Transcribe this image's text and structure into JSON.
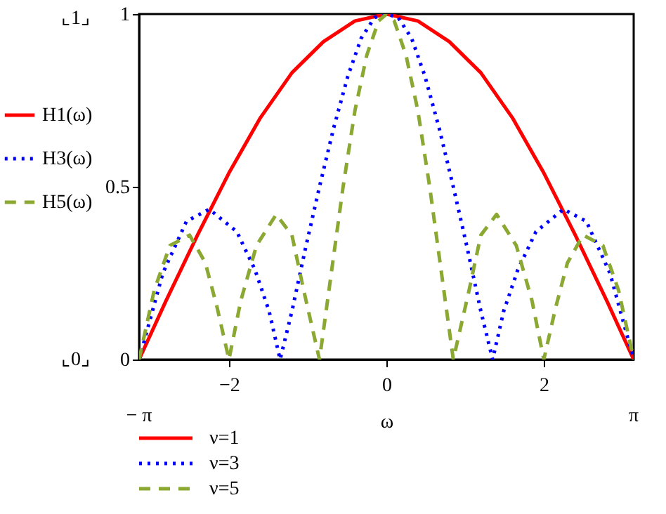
{
  "chart_data": {
    "type": "line",
    "xlabel": "ω",
    "xlim": [
      -3.1416,
      3.1416
    ],
    "xticks": [
      -2,
      0,
      2
    ],
    "ylim": [
      0,
      1
    ],
    "yticks": [
      {
        "value": 0,
        "label": "0"
      },
      0.5,
      {
        "value": 1,
        "label": "1"
      }
    ],
    "grid": false,
    "legend": "left",
    "series": [
      {
        "name": "H1(ω)",
        "color": "#ff0000",
        "line_style": "solid",
        "x": [
          -3.1416,
          -2.8,
          -2.4,
          -2.0,
          -1.6,
          -1.2,
          -0.8,
          -0.4,
          0,
          0.4,
          0.8,
          1.2,
          1.6,
          2.0,
          2.4,
          2.8,
          3.1416
        ],
        "values": [
          0,
          0.17,
          0.36,
          0.54,
          0.7,
          0.83,
          0.92,
          0.98,
          1,
          0.98,
          0.92,
          0.83,
          0.7,
          0.54,
          0.36,
          0.17,
          0
        ]
      },
      {
        "name": "H3(ω)",
        "color": "#0000ff",
        "line_style": "dotted",
        "x": [
          -3.1416,
          -2.84,
          -2.54,
          -2.25,
          -1.9,
          -1.67,
          -1.49,
          -1.35,
          -1.2,
          -1.02,
          -0.85,
          -0.67,
          -0.49,
          -0.32,
          -0.15,
          0,
          0.15,
          0.32,
          0.49,
          0.67,
          0.85,
          1.02,
          1.2,
          1.35,
          1.49,
          1.67,
          1.9,
          2.25,
          2.54,
          2.84,
          3.1416
        ],
        "values": [
          0,
          0.25,
          0.4,
          0.435,
          0.37,
          0.26,
          0.14,
          0,
          0.14,
          0.33,
          0.5,
          0.67,
          0.82,
          0.93,
          0.99,
          1,
          0.99,
          0.93,
          0.82,
          0.67,
          0.5,
          0.33,
          0.14,
          0,
          0.14,
          0.26,
          0.37,
          0.435,
          0.4,
          0.25,
          0
        ]
      },
      {
        "name": "H5(ω)",
        "color": "#8aa832",
        "line_style": "dashed",
        "x": [
          -3.1416,
          -2.95,
          -2.75,
          -2.5,
          -2.3,
          -2.15,
          -2.0,
          -1.85,
          -1.65,
          -1.4,
          -1.2,
          -1.05,
          -0.85,
          -0.7,
          -0.55,
          -0.4,
          -0.25,
          -0.1,
          0,
          0.1,
          0.25,
          0.4,
          0.55,
          0.7,
          0.85,
          1.05,
          1.2,
          1.4,
          1.65,
          1.85,
          2.0,
          2.15,
          2.3,
          2.5,
          2.75,
          2.95,
          3.1416
        ],
        "values": [
          0,
          0.2,
          0.33,
          0.36,
          0.28,
          0.15,
          0,
          0.17,
          0.33,
          0.42,
          0.36,
          0.2,
          0,
          0.25,
          0.5,
          0.72,
          0.88,
          0.98,
          1,
          0.98,
          0.88,
          0.72,
          0.5,
          0.25,
          0,
          0.2,
          0.36,
          0.42,
          0.33,
          0.17,
          0,
          0.15,
          0.28,
          0.36,
          0.33,
          0.2,
          0
        ]
      }
    ],
    "annotations": [
      "ν=1",
      "ν=3",
      "ν=5",
      "− π",
      "π",
      "⌞1⌟",
      "⌞0⌟"
    ]
  }
}
